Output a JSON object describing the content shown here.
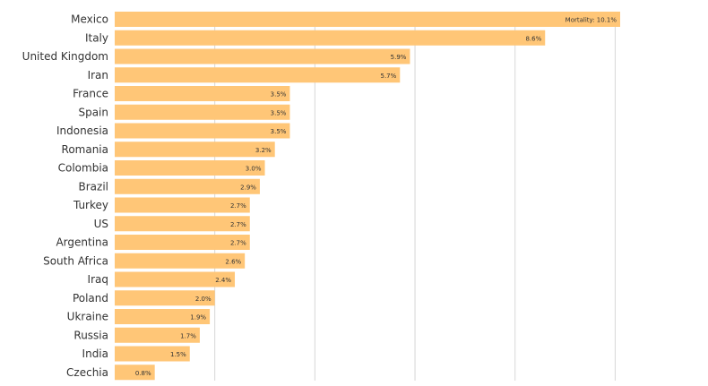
{
  "chart_data": {
    "type": "bar",
    "orientation": "horizontal",
    "title": "",
    "xlabel": "",
    "ylabel": "",
    "categories": [
      "Mexico",
      "Italy",
      "United Kingdom",
      "Iran",
      "France",
      "Spain",
      "Indonesia",
      "Romania",
      "Colombia",
      "Brazil",
      "Turkey",
      "US",
      "Argentina",
      "South Africa",
      "Iraq",
      "Poland",
      "Ukraine",
      "Russia",
      "India",
      "Czechia"
    ],
    "series": [
      {
        "values": [
          10.1,
          8.6,
          5.9,
          5.7,
          3.5,
          3.5,
          3.5,
          3.2,
          3.0,
          2.9,
          2.7,
          2.7,
          2.7,
          2.6,
          2.4,
          2.0,
          1.9,
          1.7,
          1.5,
          0.8
        ],
        "labels": [
          "Mortality: 10.1%",
          "8.6%",
          "5.9%",
          "5.7%",
          "3.5%",
          "3.5%",
          "3.5%",
          "3.2%",
          "3.0%",
          "2.9%",
          "2.7%",
          "2.7%",
          "2.7%",
          "2.6%",
          "2.4%",
          "2.0%",
          "1.9%",
          "1.7%",
          "1.5%",
          "0.8%"
        ]
      }
    ],
    "xlim": [
      0,
      10.1
    ],
    "gridlines": [
      2,
      4,
      6,
      8,
      10
    ],
    "grid": true,
    "legend": "none",
    "bar_color": "#ffc677"
  }
}
